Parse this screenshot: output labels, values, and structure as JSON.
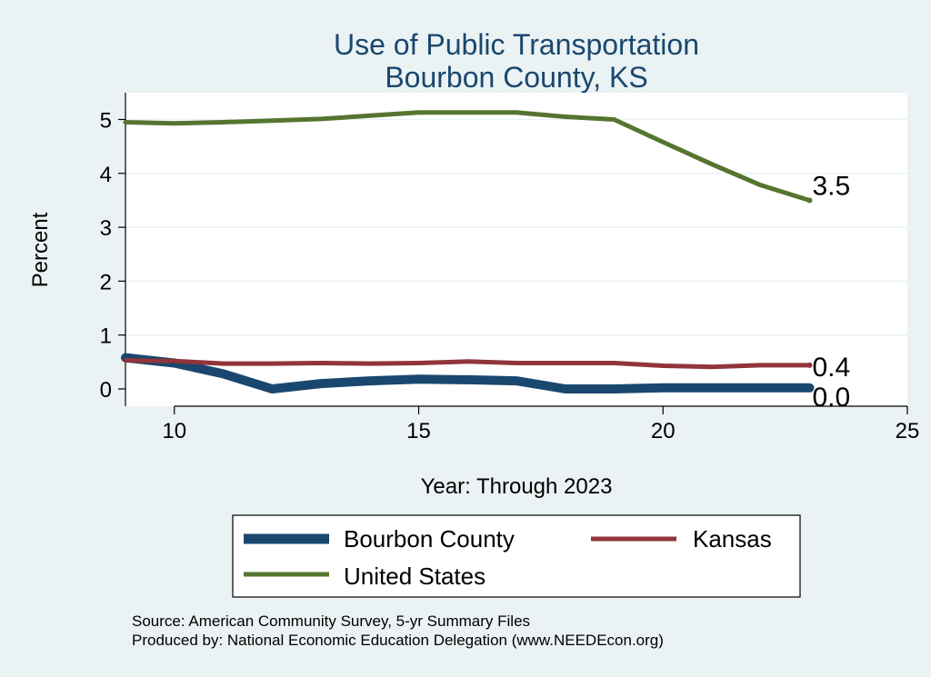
{
  "chart_data": {
    "type": "line",
    "title": [
      "Use of Public Transportation",
      "Bourbon County, KS"
    ],
    "xlabel": "Year: Through 2023",
    "ylabel": "Percent",
    "xlim": [
      9,
      25
    ],
    "ylim": [
      0,
      5.2
    ],
    "xticks": [
      10,
      15,
      20,
      25
    ],
    "yticks": [
      0,
      1,
      2,
      3,
      4,
      5
    ],
    "grid": true,
    "legend_position": "bottom",
    "series": [
      {
        "name": "Bourbon County",
        "color": "#1a476f",
        "x": [
          9,
          10,
          11,
          12,
          13,
          14,
          15,
          16,
          17,
          18,
          19,
          20,
          21,
          22,
          23
        ],
        "y": [
          0.58,
          0.48,
          0.28,
          0.0,
          0.1,
          0.15,
          0.18,
          0.17,
          0.15,
          0.0,
          0.0,
          0.02,
          0.02,
          0.02,
          0.02
        ],
        "end_label": "0.0"
      },
      {
        "name": "Kansas",
        "color": "#90353b",
        "x": [
          9,
          10,
          11,
          12,
          13,
          14,
          15,
          16,
          17,
          18,
          19,
          20,
          21,
          22,
          23
        ],
        "y": [
          0.53,
          0.52,
          0.47,
          0.47,
          0.48,
          0.47,
          0.48,
          0.51,
          0.48,
          0.48,
          0.48,
          0.43,
          0.41,
          0.44,
          0.44
        ],
        "end_label": "0.4"
      },
      {
        "name": "United States",
        "color": "#55752f",
        "x": [
          9,
          10,
          11,
          12,
          13,
          14,
          15,
          16,
          17,
          18,
          19,
          20,
          21,
          22,
          23
        ],
        "y": [
          4.95,
          4.93,
          4.95,
          4.98,
          5.01,
          5.07,
          5.13,
          5.13,
          5.13,
          5.05,
          5.0,
          4.58,
          4.17,
          3.78,
          3.5
        ],
        "end_label": "3.5"
      }
    ],
    "legend": {
      "entries": [
        {
          "label": "Bourbon County",
          "color": "#1a476f"
        },
        {
          "label": "Kansas",
          "color": "#90353b"
        },
        {
          "label": "United States",
          "color": "#55752f"
        }
      ]
    },
    "notes": [
      "Source: American Community Survey, 5-yr Summary Files",
      "Produced by: National Economic Education Delegation (www.NEEDEcon.org)"
    ]
  }
}
